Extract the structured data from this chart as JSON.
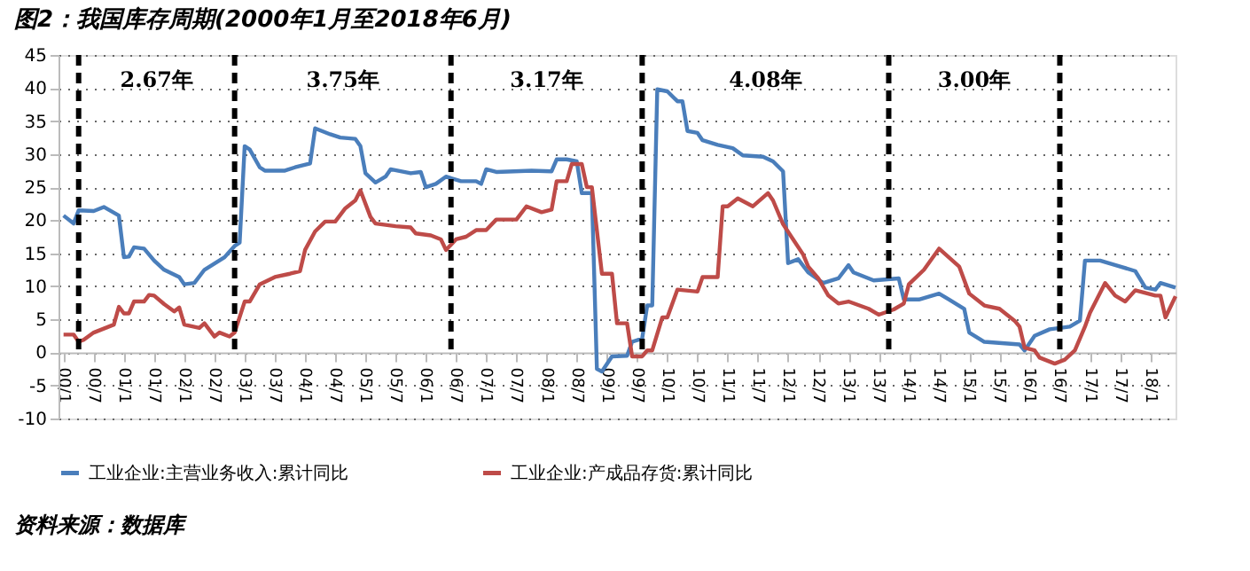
{
  "chart_data": {
    "type": "line",
    "title": "图2：我国库存周期(2000年1月至2018年6月)",
    "xlim": [
      "1999-12",
      "2018-06"
    ],
    "xticks": [
      {
        "value": "2000-01",
        "label": "00/1"
      },
      {
        "value": "2000-07",
        "label": "00/7"
      },
      {
        "value": "2001-01",
        "label": "01/1"
      },
      {
        "value": "2001-07",
        "label": "01/7"
      },
      {
        "value": "2002-01",
        "label": "02/1"
      },
      {
        "value": "2002-07",
        "label": "02/7"
      },
      {
        "value": "2003-01",
        "label": "03/1"
      },
      {
        "value": "2003-07",
        "label": "03/7"
      },
      {
        "value": "2004-01",
        "label": "04/1"
      },
      {
        "value": "2004-07",
        "label": "04/7"
      },
      {
        "value": "2005-01",
        "label": "05/1"
      },
      {
        "value": "2005-07",
        "label": "05/7"
      },
      {
        "value": "2006-01",
        "label": "06/1"
      },
      {
        "value": "2006-07",
        "label": "06/7"
      },
      {
        "value": "2007-01",
        "label": "07/1"
      },
      {
        "value": "2007-07",
        "label": "07/7"
      },
      {
        "value": "2008-01",
        "label": "08/1"
      },
      {
        "value": "2008-07",
        "label": "08/7"
      },
      {
        "value": "2009-01",
        "label": "09/1"
      },
      {
        "value": "2009-07",
        "label": "09/7"
      },
      {
        "value": "2010-01",
        "label": "10/1"
      },
      {
        "value": "2010-07",
        "label": "10/7"
      },
      {
        "value": "2011-01",
        "label": "11/1"
      },
      {
        "value": "2011-07",
        "label": "11/7"
      },
      {
        "value": "2012-01",
        "label": "12/1"
      },
      {
        "value": "2012-07",
        "label": "12/7"
      },
      {
        "value": "2013-01",
        "label": "13/1"
      },
      {
        "value": "2013-07",
        "label": "13/7"
      },
      {
        "value": "2014-01",
        "label": "14/1"
      },
      {
        "value": "2014-07",
        "label": "14/7"
      },
      {
        "value": "2015-01",
        "label": "15/1"
      },
      {
        "value": "2015-07",
        "label": "15/7"
      },
      {
        "value": "2016-01",
        "label": "16/1"
      },
      {
        "value": "2016-07",
        "label": "16/7"
      },
      {
        "value": "2017-01",
        "label": "17/1"
      },
      {
        "value": "2017-07",
        "label": "17/7"
      },
      {
        "value": "2018-01",
        "label": "18/1"
      }
    ],
    "ylim": [
      -10,
      45
    ],
    "yticks": [
      -10,
      -5,
      0,
      5,
      10,
      15,
      20,
      25,
      30,
      35,
      40,
      45
    ],
    "grid": "y",
    "legend": "bottom",
    "marker": "none",
    "line_style": "solid",
    "series": [
      {
        "name": "工业企业:主营业务收入:累计同比",
        "color": "#4a7ebb",
        "x": [
          "2000-01",
          "2000-03",
          "2000-04",
          "2000-07",
          "2000-09",
          "2000-12",
          "2001-01",
          "2001-02",
          "2001-03",
          "2001-05",
          "2001-07",
          "2001-09",
          "2001-12",
          "2002-01",
          "2002-03",
          "2002-05",
          "2002-09",
          "2002-11",
          "2002-12",
          "2003-01",
          "2003-02",
          "2003-04",
          "2003-05",
          "2003-09",
          "2003-11",
          "2004-02",
          "2004-03",
          "2004-06",
          "2004-08",
          "2004-11",
          "2004-12",
          "2005-01",
          "2005-03",
          "2005-05",
          "2005-06",
          "2005-10",
          "2005-12",
          "2006-01",
          "2006-03",
          "2006-05",
          "2006-08",
          "2006-11",
          "2006-12",
          "2007-01",
          "2007-03",
          "2007-10",
          "2008-02",
          "2008-03",
          "2008-05",
          "2008-07",
          "2008-08",
          "2008-10",
          "2008-11",
          "2008-12",
          "2009-02",
          "2009-05",
          "2009-06",
          "2009-08",
          "2009-09",
          "2009-10",
          "2009-11",
          "2010-01",
          "2010-03",
          "2010-04",
          "2010-05",
          "2010-07",
          "2010-08",
          "2010-11",
          "2011-02",
          "2011-04",
          "2011-08",
          "2011-10",
          "2011-12",
          "2012-01",
          "2012-03",
          "2012-05",
          "2012-08",
          "2012-11",
          "2013-01",
          "2013-02",
          "2013-06",
          "2013-11",
          "2013-12",
          "2014-03",
          "2014-07",
          "2014-09",
          "2014-12",
          "2015-01",
          "2015-04",
          "2015-11",
          "2015-12",
          "2016-02",
          "2016-05",
          "2016-09",
          "2016-11",
          "2016-12",
          "2017-03",
          "2017-07",
          "2017-10",
          "2017-12",
          "2018-02",
          "2018-03",
          "2018-06"
        ],
        "values": [
          20.7,
          19.5,
          21.5,
          21.4,
          22,
          20.7,
          14.4,
          14.5,
          15.9,
          15.7,
          13.9,
          12.5,
          11.4,
          10.3,
          10.5,
          12.5,
          14.4,
          16.1,
          16.6,
          31.2,
          30.7,
          28,
          27.5,
          27.5,
          28,
          28.6,
          33.9,
          33,
          32.5,
          32.3,
          31.2,
          27.1,
          25.7,
          26.6,
          27.7,
          27.1,
          27.3,
          25,
          25.5,
          26.6,
          25.9,
          25.9,
          25.5,
          27.7,
          27.3,
          27.5,
          27.4,
          29.2,
          29.2,
          28.9,
          24.1,
          24.1,
          -2.5,
          -2.9,
          -0.6,
          -0.5,
          1.6,
          2.1,
          7.1,
          7.1,
          39.8,
          39.5,
          38,
          38,
          33.5,
          33.2,
          32.1,
          31.4,
          30.9,
          29.8,
          29.6,
          28.9,
          27.4,
          13.5,
          14.1,
          12.1,
          10.5,
          11.2,
          13.2,
          12.1,
          10.9,
          11.2,
          8,
          8,
          8.9,
          8,
          6.6,
          3,
          1.6,
          1.2,
          0.3,
          2.5,
          3.5,
          3.9,
          4.8,
          13.9,
          13.9,
          13,
          12.3,
          9.8,
          9.5,
          10.5,
          9.8
        ]
      },
      {
        "name": "工业企业:产成品存货:累计同比",
        "color": "#be4b48",
        "x": [
          "2000-01",
          "2000-03",
          "2000-04",
          "2000-05",
          "2000-07",
          "2000-09",
          "2000-11",
          "2000-12",
          "2001-01",
          "2001-02",
          "2001-03",
          "2001-05",
          "2001-06",
          "2001-07",
          "2001-09",
          "2001-11",
          "2001-12",
          "2002-01",
          "2002-04",
          "2002-05",
          "2002-07",
          "2002-08",
          "2002-10",
          "2002-11",
          "2003-01",
          "2003-02",
          "2003-04",
          "2003-07",
          "2003-10",
          "2003-12",
          "2004-01",
          "2004-03",
          "2004-05",
          "2004-07",
          "2004-09",
          "2004-11",
          "2004-12",
          "2005-02",
          "2005-03",
          "2005-07",
          "2005-10",
          "2005-11",
          "2006-02",
          "2006-04",
          "2006-05",
          "2006-07",
          "2006-09",
          "2006-11",
          "2007-01",
          "2007-03",
          "2007-07",
          "2007-09",
          "2007-12",
          "2008-02",
          "2008-03",
          "2008-05",
          "2008-06",
          "2008-08",
          "2008-09",
          "2008-10",
          "2008-12",
          "2009-02",
          "2009-03",
          "2009-05",
          "2009-06",
          "2009-08",
          "2009-09",
          "2009-10",
          "2009-12",
          "2010-01",
          "2010-03",
          "2010-07",
          "2010-08",
          "2010-11",
          "2010-12",
          "2011-01",
          "2011-03",
          "2011-06",
          "2011-09",
          "2011-10",
          "2011-12",
          "2012-02",
          "2012-04",
          "2012-05",
          "2012-07",
          "2012-09",
          "2012-11",
          "2013-01",
          "2013-05",
          "2013-07",
          "2013-10",
          "2013-12",
          "2014-01",
          "2014-04",
          "2014-07",
          "2014-11",
          "2015-01",
          "2015-04",
          "2015-07",
          "2015-10",
          "2015-11",
          "2015-12",
          "2016-02",
          "2016-03",
          "2016-06",
          "2016-08",
          "2016-10",
          "2016-12",
          "2017-01",
          "2017-04",
          "2017-06",
          "2017-08",
          "2017-10",
          "2018-02",
          "2018-03",
          "2018-04",
          "2018-06"
        ],
        "values": [
          2.7,
          2.7,
          1.6,
          1.9,
          3,
          3.6,
          4.2,
          6.9,
          5.9,
          5.9,
          7.7,
          7.7,
          8.7,
          8.6,
          7.3,
          6.2,
          6.8,
          4.2,
          3.7,
          4.4,
          2.4,
          3,
          2.4,
          3,
          7.7,
          7.7,
          10.3,
          11.4,
          11.9,
          12.3,
          15.5,
          18.3,
          19.8,
          19.8,
          21.8,
          23,
          24.5,
          20.5,
          19.5,
          19.1,
          18.9,
          18,
          17.7,
          17.1,
          15.5,
          17.1,
          17.5,
          18.5,
          18.5,
          20.1,
          20.1,
          22.1,
          21.2,
          21.6,
          25.9,
          25.9,
          28.5,
          28.5,
          25,
          25,
          11.9,
          11.9,
          4.4,
          4.4,
          -0.6,
          -0.6,
          0.3,
          0.3,
          5.3,
          5.3,
          9.5,
          9.2,
          11.4,
          11.4,
          22.1,
          22.1,
          23.3,
          22.1,
          24.1,
          23,
          19.4,
          17.1,
          14.8,
          13,
          11.2,
          8.6,
          7.4,
          7.7,
          6.6,
          5.7,
          6.5,
          7.4,
          10.3,
          12.5,
          15.7,
          13,
          8.9,
          7.1,
          6.6,
          4.8,
          3.9,
          0.7,
          0.3,
          -0.8,
          -1.7,
          -1.1,
          0.3,
          3.9,
          6,
          10.5,
          8.6,
          7.7,
          9.4,
          8.6,
          8.6,
          5.3,
          8.5
        ]
      }
    ],
    "ref_lines": [
      {
        "axis": "x",
        "value": "2000-04",
        "color": "#000000",
        "line_style": "dashed"
      },
      {
        "axis": "x",
        "value": "2002-11",
        "color": "#000000",
        "line_style": "dashed"
      },
      {
        "axis": "x",
        "value": "2006-06",
        "color": "#000000",
        "line_style": "dashed"
      },
      {
        "axis": "x",
        "value": "2009-08",
        "color": "#000000",
        "line_style": "dashed"
      },
      {
        "axis": "x",
        "value": "2013-09",
        "color": "#000000",
        "line_style": "dashed"
      },
      {
        "axis": "x",
        "value": "2016-07",
        "color": "#000000",
        "line_style": "dashed"
      }
    ],
    "annotations": [
      "2.67年",
      "3.75年",
      "3.17年",
      "4.08年",
      "3.00年",
      "资料来源：数据库"
    ]
  }
}
